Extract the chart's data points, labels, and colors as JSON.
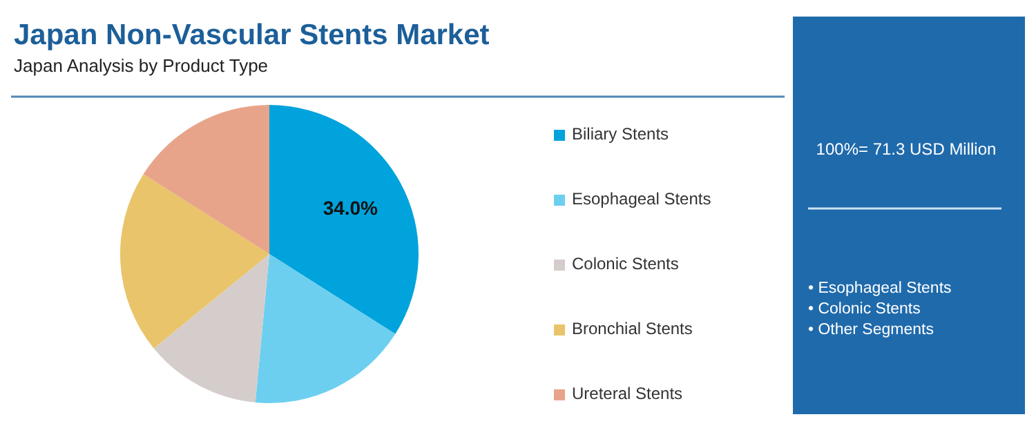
{
  "chart_data": {
    "type": "pie",
    "title": "Japan Non-Vascular Stents Market",
    "subtitle": "Japan Analysis by Product Type",
    "categories": [
      "Biliary Stents",
      "Esophageal Stents",
      "Colonic Stents",
      "Bronchial Stents",
      "Ureteral Stents"
    ],
    "values": [
      34.0,
      17.5,
      12.6,
      19.9,
      16.0
    ],
    "colors": [
      "#00a3dc",
      "#6dcff0",
      "#d5cdcb",
      "#e9c46a",
      "#e8a48a"
    ],
    "value_labels": [
      "34.0%",
      null,
      null,
      null,
      null
    ],
    "legend": "right",
    "annotations": [
      "100%= 71.3 USD Million",
      "• Esophageal Stents",
      "• Colonic Stents",
      "• Other Segments"
    ]
  }
}
